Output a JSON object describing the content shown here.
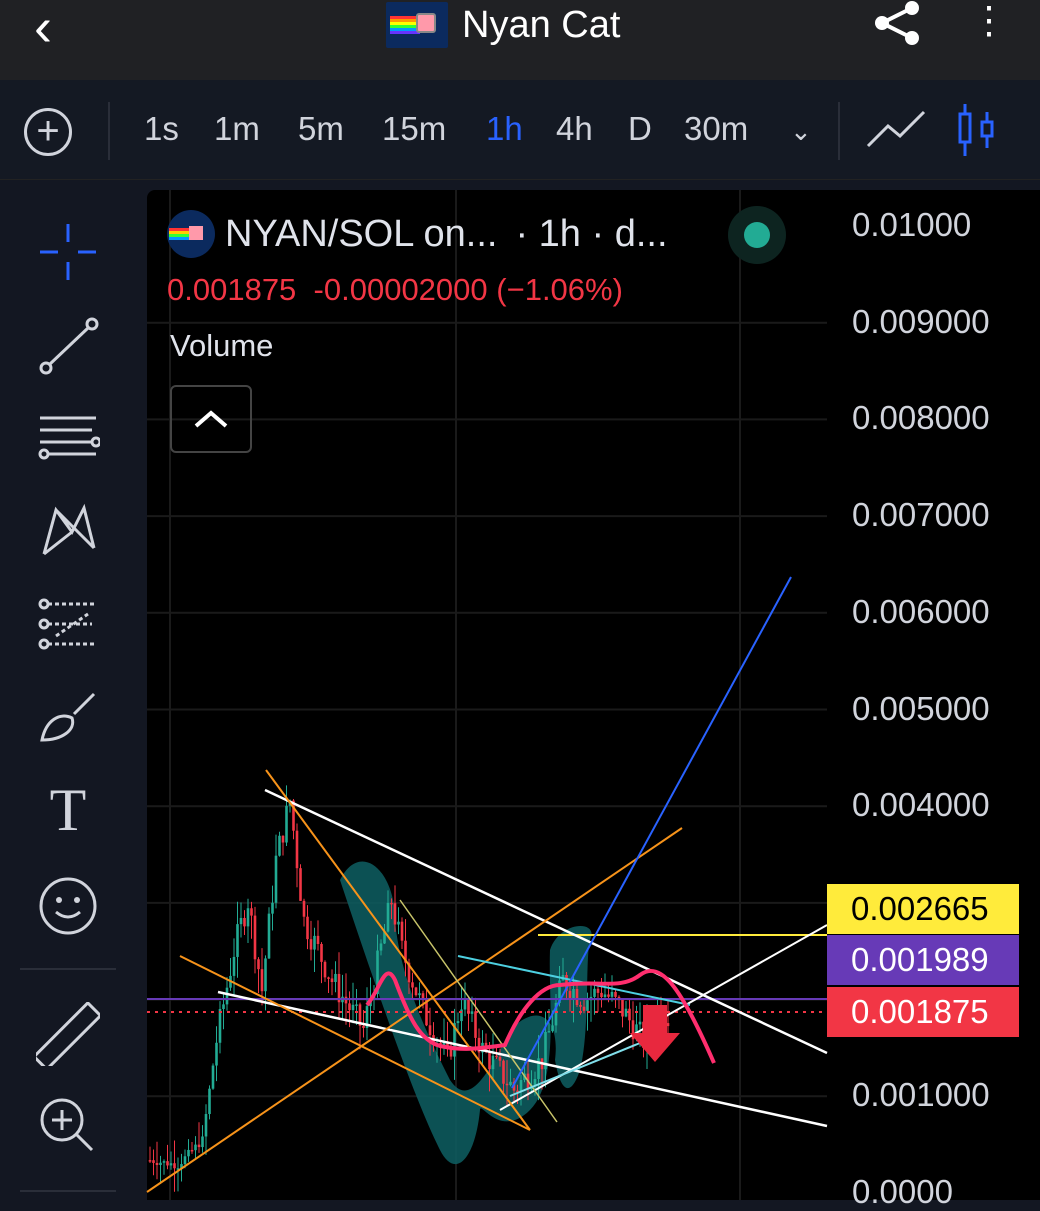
{
  "header": {
    "title": "Nyan Cat",
    "back_icon": "chevron-left-icon",
    "share_icon": "share-icon",
    "more_icon": "more-vertical-icon"
  },
  "timeframes": {
    "items": [
      "1s",
      "1m",
      "5m",
      "15m",
      "1h",
      "4h",
      "D",
      "30m"
    ],
    "active": "1h"
  },
  "chart_types": [
    "line-chart-icon",
    "candlestick-icon"
  ],
  "side_tools": [
    "crosshair-icon",
    "trend-line-icon",
    "horizontal-lines-icon",
    "pattern-icon",
    "fib-icon",
    "brush-icon",
    "text-icon",
    "emoji-icon",
    "ruler-icon",
    "zoom-in-icon"
  ],
  "legend": {
    "symbol": "NYAN/SOL on...",
    "interval": "· 1h · d...",
    "last": "0.001875",
    "change": "-0.00002000",
    "change_pct": "(−1.06%)",
    "volume_label": "Volume",
    "status_color": "#22ab94"
  },
  "price_axis": [
    "0.01000",
    "0.009000",
    "0.008000",
    "0.007000",
    "0.006000",
    "0.005000",
    "0.004000",
    "0.001000",
    "0.0000"
  ],
  "price_tags": [
    {
      "value": "0.002665",
      "bg": "#ffeb3b",
      "fg": "#000000"
    },
    {
      "value": "0.001989",
      "bg": "#673ab7",
      "fg": "#ffffff"
    },
    {
      "value": "0.001875",
      "bg": "#f23645",
      "fg": "#ffffff"
    }
  ],
  "chart_data": {
    "type": "candlestick",
    "ylim": [
      0,
      0.01
    ],
    "colors": {
      "up": "#22ab94",
      "down": "#f23645"
    },
    "approx_close_path": [
      [
        0,
        0.00034
      ],
      [
        8,
        0.00029
      ],
      [
        15,
        0.00055
      ],
      [
        19,
        0.00158
      ],
      [
        24,
        0.00251
      ],
      [
        28,
        0.00303
      ],
      [
        32,
        0.0021
      ],
      [
        36,
        0.00344
      ],
      [
        40,
        0.00406
      ],
      [
        44,
        0.00282
      ],
      [
        52,
        0.0022
      ],
      [
        61,
        0.00169
      ],
      [
        69,
        0.00303
      ],
      [
        72,
        0.00251
      ],
      [
        78,
        0.00189
      ],
      [
        85,
        0.00138
      ],
      [
        89,
        0.002
      ],
      [
        95,
        0.00148
      ],
      [
        104,
        0.00107
      ],
      [
        112,
        0.00138
      ],
      [
        118,
        0.0022
      ],
      [
        124,
        0.002
      ],
      [
        129,
        0.0021
      ],
      [
        135,
        0.00189
      ],
      [
        141,
        0.00158
      ],
      [
        145,
        0.00189
      ],
      [
        148,
        0.001875
      ]
    ],
    "horizontal_levels": [
      0.002665,
      0.001989,
      0.001875
    ]
  }
}
